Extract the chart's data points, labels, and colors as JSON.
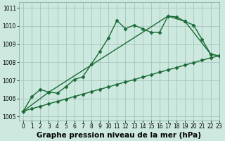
{
  "xlabel": "Graphe pression niveau de la mer (hPa)",
  "bg_color": "#cce8df",
  "grid_color": "#9dbfb4",
  "line_color": "#1a6b35",
  "xlim": [
    -0.5,
    23
  ],
  "ylim": [
    1004.8,
    1011.3
  ],
  "yticks": [
    1005,
    1006,
    1007,
    1008,
    1009,
    1010,
    1011
  ],
  "xticks": [
    0,
    1,
    2,
    3,
    4,
    5,
    6,
    7,
    8,
    9,
    10,
    11,
    12,
    13,
    14,
    15,
    16,
    17,
    18,
    19,
    20,
    21,
    22,
    23
  ],
  "s_wavy_x": [
    0,
    1,
    2,
    3,
    4,
    5,
    6,
    7,
    8,
    9,
    10,
    11,
    12,
    13,
    14,
    15,
    16,
    17,
    18,
    19,
    20,
    21,
    22,
    23
  ],
  "s_wavy_y": [
    1005.3,
    1006.1,
    1006.5,
    1006.35,
    1006.3,
    1006.65,
    1007.05,
    1007.2,
    1007.9,
    1008.6,
    1009.35,
    1010.3,
    1009.85,
    1010.05,
    1009.85,
    1009.65,
    1009.65,
    1010.55,
    1010.5,
    1010.25,
    1010.05,
    1009.25,
    1008.45,
    1008.35
  ],
  "s_low_x": [
    0,
    1,
    2,
    3,
    4,
    5,
    6,
    7,
    8,
    9,
    10,
    11,
    12,
    13,
    14,
    15,
    16,
    17,
    18,
    19,
    20,
    21,
    22,
    23
  ],
  "s_low_y": [
    1005.3,
    1005.44,
    1005.57,
    1005.71,
    1005.84,
    1005.97,
    1006.11,
    1006.24,
    1006.38,
    1006.51,
    1006.64,
    1006.78,
    1006.91,
    1007.04,
    1007.18,
    1007.31,
    1007.45,
    1007.58,
    1007.71,
    1007.85,
    1007.98,
    1008.11,
    1008.25,
    1008.35
  ],
  "s_up_x": [
    0,
    3,
    17,
    19,
    22,
    23
  ],
  "s_up_y": [
    1005.3,
    1006.35,
    1010.55,
    1010.25,
    1008.45,
    1008.35
  ],
  "marker": "D",
  "markersize": 2.5,
  "linewidth": 1.0,
  "xlabel_fontsize": 7.5,
  "tick_fontsize": 5.5
}
